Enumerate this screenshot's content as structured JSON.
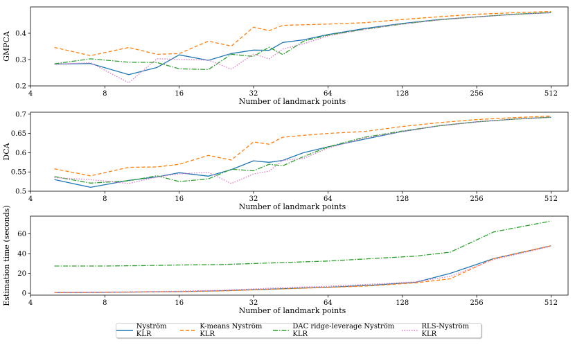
{
  "chart_data": [
    {
      "type": "line",
      "ylabel": "GMPCA",
      "xlabel": "Number of landmark points",
      "xscale": "log2",
      "xlim": [
        4,
        600
      ],
      "ylim": [
        0.2,
        0.5
      ],
      "xticks": [
        4,
        8,
        16,
        32,
        64,
        128,
        256,
        512
      ],
      "yticks": [
        0.2,
        0.3,
        0.4
      ],
      "x": [
        5,
        7,
        10,
        13,
        16,
        21,
        26,
        32,
        37,
        42,
        51,
        64,
        90,
        128,
        181,
        256,
        362,
        512
      ],
      "series": [
        {
          "name": "Nyström KLR",
          "values": [
            0.283,
            0.285,
            0.243,
            0.27,
            0.318,
            0.297,
            0.323,
            0.336,
            0.335,
            0.365,
            0.375,
            0.395,
            0.418,
            0.437,
            0.452,
            0.462,
            0.472,
            0.478
          ]
        },
        {
          "name": "K-means Nyström KLR",
          "values": [
            0.346,
            0.315,
            0.346,
            0.32,
            0.323,
            0.37,
            0.351,
            0.423,
            0.41,
            0.43,
            0.432,
            0.435,
            0.44,
            0.452,
            0.463,
            0.472,
            0.478,
            0.483
          ]
        },
        {
          "name": "DAC ridge-leverage Nyström KLR",
          "values": [
            0.284,
            0.303,
            0.29,
            0.289,
            0.265,
            0.262,
            0.32,
            0.312,
            0.347,
            0.319,
            0.37,
            0.393,
            0.415,
            0.435,
            0.451,
            0.462,
            0.472,
            0.479
          ]
        },
        {
          "name": "RLS-Nyström KLR",
          "values": [
            0.282,
            0.288,
            0.212,
            0.303,
            0.301,
            0.298,
            0.264,
            0.321,
            0.303,
            0.34,
            0.36,
            0.39,
            0.415,
            0.435,
            0.451,
            0.462,
            0.471,
            0.478
          ]
        }
      ]
    },
    {
      "type": "line",
      "ylabel": "DCA",
      "xlabel": "Number of landmark points",
      "xscale": "log2",
      "xlim": [
        4,
        600
      ],
      "ylim": [
        0.5,
        0.705
      ],
      "xticks": [
        4,
        8,
        16,
        32,
        64,
        128,
        256,
        512
      ],
      "yticks": [
        0.5,
        0.55,
        0.6,
        0.65,
        0.7
      ],
      "x": [
        5,
        7,
        10,
        13,
        16,
        21,
        26,
        32,
        37,
        42,
        51,
        64,
        90,
        128,
        181,
        256,
        362,
        512
      ],
      "series": [
        {
          "name": "Nyström KLR",
          "values": [
            0.53,
            0.51,
            0.528,
            0.537,
            0.548,
            0.539,
            0.556,
            0.579,
            0.575,
            0.58,
            0.6,
            0.615,
            0.635,
            0.655,
            0.67,
            0.68,
            0.687,
            0.692
          ]
        },
        {
          "name": "K-means Nyström KLR",
          "values": [
            0.558,
            0.54,
            0.562,
            0.563,
            0.57,
            0.593,
            0.581,
            0.628,
            0.622,
            0.64,
            0.645,
            0.65,
            0.655,
            0.668,
            0.678,
            0.686,
            0.691,
            0.695
          ]
        },
        {
          "name": "DAC ridge-leverage Nyström KLR",
          "values": [
            0.538,
            0.521,
            0.527,
            0.54,
            0.525,
            0.532,
            0.557,
            0.553,
            0.57,
            0.566,
            0.59,
            0.615,
            0.64,
            0.656,
            0.67,
            0.68,
            0.687,
            0.692
          ]
        },
        {
          "name": "RLS-Nyström KLR",
          "values": [
            0.535,
            0.53,
            0.52,
            0.537,
            0.545,
            0.549,
            0.52,
            0.545,
            0.552,
            0.58,
            0.585,
            0.612,
            0.638,
            0.655,
            0.67,
            0.68,
            0.687,
            0.692
          ]
        }
      ]
    },
    {
      "type": "line",
      "ylabel": "Estimation time (seconds)",
      "xlabel": "Number of landmark points",
      "xscale": "log2",
      "xlim": [
        4,
        600
      ],
      "ylim": [
        -2,
        78
      ],
      "xticks": [
        4,
        8,
        16,
        32,
        64,
        128,
        256,
        512
      ],
      "yticks": [
        0,
        20,
        40,
        60
      ],
      "x": [
        5,
        8,
        12,
        16,
        24,
        32,
        48,
        64,
        96,
        145,
        200,
        300,
        512
      ],
      "series": [
        {
          "name": "Nyström KLR",
          "values": [
            0.5,
            0.8,
            1.2,
            1.5,
            2.5,
            3.5,
            5,
            6,
            8,
            11,
            20,
            35,
            48
          ]
        },
        {
          "name": "K-means Nyström KLR",
          "values": [
            0.5,
            0.8,
            1.2,
            1.5,
            2.3,
            3.3,
            4.8,
            5.8,
            7.5,
            10.5,
            14.5,
            35,
            48
          ]
        },
        {
          "name": "DAC ridge-leverage Nyström KLR",
          "values": [
            27.5,
            27.5,
            28,
            28.5,
            29,
            30,
            31.5,
            32.5,
            35,
            37.5,
            41.5,
            62,
            73
          ]
        },
        {
          "name": "RLS-Nyström KLR",
          "values": [
            0.8,
            1.1,
            1.6,
            2,
            3,
            4.3,
            6,
            7,
            9,
            11.5,
            17,
            34,
            47.5
          ]
        }
      ]
    }
  ],
  "series_styles": [
    {
      "color": "#1f77b4",
      "dash": ""
    },
    {
      "color": "#ff7f0e",
      "dash": "5,3"
    },
    {
      "color": "#2ca02c",
      "dash": "7,2,1.5,2"
    },
    {
      "color": "#e377c2",
      "dash": "1.5,2"
    }
  ],
  "legend": [
    {
      "label": "Nyström KLR"
    },
    {
      "label": "K-means Nyström KLR"
    },
    {
      "label": "DAC ridge-leverage Nyström KLR"
    },
    {
      "label": "RLS-Nyström KLR"
    }
  ]
}
